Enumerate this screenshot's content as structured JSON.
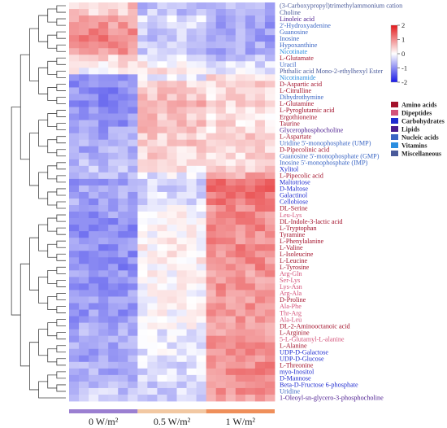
{
  "chart_data": {
    "type": "heatmap",
    "title": "",
    "groups": [
      {
        "name": "0 W/m²",
        "color": "#9b7fd1",
        "columns": 7
      },
      {
        "name": "0.5 W/m²",
        "color": "#f2c8a2",
        "columns": 7
      },
      {
        "name": "1 W/m²",
        "color": "#ef8f5a",
        "columns": 7
      }
    ],
    "scale": {
      "min": -2,
      "max": 2,
      "ticks": [
        "2",
        "1",
        "0",
        "-1",
        "-2"
      ],
      "low_color": "#1a1ae6",
      "mid_color": "#ffffff",
      "high_color": "#e31a1c"
    },
    "classes": [
      {
        "name": "Amino acids",
        "color": "#a3122b"
      },
      {
        "name": "Dipeptides",
        "color": "#d4537a"
      },
      {
        "name": "Carbohydrates",
        "color": "#1f2bd0"
      },
      {
        "name": "Lipids",
        "color": "#4b1c8f"
      },
      {
        "name": "Nucleic acids",
        "color": "#3b66c4"
      },
      {
        "name": "Vitamins",
        "color": "#2b8ee0"
      },
      {
        "name": "Miscellaneous",
        "color": "#4a5a9a"
      }
    ],
    "rows": [
      {
        "label": "(3-Carboxypropyl)trimethylammonium cation",
        "class": "Miscellaneous",
        "group_means": [
          0.5,
          -0.6,
          -0.7
        ]
      },
      {
        "label": "Choline",
        "class": "Miscellaneous",
        "group_means": [
          0.4,
          -0.5,
          -0.6
        ]
      },
      {
        "label": "Linoleic acid",
        "class": "Lipids",
        "group_means": [
          0.9,
          -0.3,
          -0.8
        ]
      },
      {
        "label": "2'-Hydroxyadenine",
        "class": "Nucleic acids",
        "group_means": [
          0.9,
          -0.4,
          -0.8
        ]
      },
      {
        "label": "Guanosine",
        "class": "Nucleic acids",
        "group_means": [
          1.0,
          -0.4,
          -0.8
        ]
      },
      {
        "label": "Inosine",
        "class": "Nucleic acids",
        "group_means": [
          1.1,
          -0.5,
          -0.8
        ]
      },
      {
        "label": "Hypoxanthine",
        "class": "Nucleic acids",
        "group_means": [
          0.9,
          -0.4,
          -0.7
        ]
      },
      {
        "label": "Nicotinate",
        "class": "Vitamins",
        "group_means": [
          0.9,
          -0.4,
          -0.7
        ]
      },
      {
        "label": "L-Glutamate",
        "class": "Amino acids",
        "group_means": [
          0.4,
          -0.3,
          -0.5
        ]
      },
      {
        "label": "Uracil",
        "class": "Nucleic acids",
        "group_means": [
          0.2,
          0.1,
          -0.3
        ]
      },
      {
        "label": "Phthalic acid Mono-2-ethylhexyl Ester",
        "class": "Miscellaneous",
        "group_means": [
          0.0,
          0.3,
          -0.2
        ]
      },
      {
        "label": "Nicotinamide",
        "class": "Vitamins",
        "group_means": [
          -1.1,
          -0.2,
          0.3
        ]
      },
      {
        "label": "D-Aspartic acid",
        "class": "Amino acids",
        "group_means": [
          -1.0,
          0.4,
          0.4
        ]
      },
      {
        "label": "L-Citrulline",
        "class": "Amino acids",
        "group_means": [
          -1.0,
          0.5,
          0.3
        ]
      },
      {
        "label": "Dihydrothymine",
        "class": "Nucleic acids",
        "group_means": [
          -1.0,
          0.5,
          0.3
        ]
      },
      {
        "label": "L-Glutamine",
        "class": "Amino acids",
        "group_means": [
          -1.1,
          0.6,
          0.3
        ]
      },
      {
        "label": "L-Pyroglutamic acid",
        "class": "Amino acids",
        "group_means": [
          -1.0,
          0.6,
          0.3
        ]
      },
      {
        "label": "Ergothioneine",
        "class": "Amino acids",
        "group_means": [
          -0.9,
          0.5,
          0.2
        ]
      },
      {
        "label": "Taurine",
        "class": "Amino acids",
        "group_means": [
          -0.9,
          0.6,
          0.3
        ]
      },
      {
        "label": "Glycerophosphocholine",
        "class": "Lipids",
        "group_means": [
          -0.8,
          0.5,
          0.3
        ]
      },
      {
        "label": "L-Aspartate",
        "class": "Amino acids",
        "group_means": [
          -0.8,
          0.4,
          0.4
        ]
      },
      {
        "label": "Uridine 5'-monophosphate (UMP)",
        "class": "Nucleic acids",
        "group_means": [
          -0.7,
          0.5,
          0.3
        ]
      },
      {
        "label": "D-Pipecolinic acid",
        "class": "Amino acids",
        "group_means": [
          -0.7,
          0.4,
          0.3
        ]
      },
      {
        "label": "Guanosine 5'-monophosphate (GMP)",
        "class": "Nucleic acids",
        "group_means": [
          -0.6,
          0.4,
          0.3
        ]
      },
      {
        "label": "Inosine 5'-monophosphate (IMP)",
        "class": "Nucleic acids",
        "group_means": [
          -0.6,
          0.3,
          0.3
        ]
      },
      {
        "label": "Xylitol",
        "class": "Carbohydrates",
        "group_means": [
          -0.5,
          0.2,
          0.4
        ]
      },
      {
        "label": "L-Pipecolic acid",
        "class": "Amino acids",
        "group_means": [
          -0.7,
          -0.2,
          0.8
        ]
      },
      {
        "label": "Maltotriose",
        "class": "Carbohydrates",
        "group_means": [
          -0.8,
          -0.4,
          1.2
        ]
      },
      {
        "label": "D-Maltose",
        "class": "Carbohydrates",
        "group_means": [
          -0.8,
          -0.4,
          1.3
        ]
      },
      {
        "label": "Galactinol",
        "class": "Carbohydrates",
        "group_means": [
          -0.8,
          -0.3,
          1.2
        ]
      },
      {
        "label": "Cellobiose",
        "class": "Carbohydrates",
        "group_means": [
          -0.8,
          -0.3,
          1.2
        ]
      },
      {
        "label": "DL-Serine",
        "class": "Amino acids",
        "group_means": [
          -0.9,
          -0.1,
          1.0
        ]
      },
      {
        "label": "Leu-Lys",
        "class": "Dipeptides",
        "group_means": [
          -0.9,
          0.0,
          1.0
        ]
      },
      {
        "label": "DL-Indole-3-lactic acid",
        "class": "Amino acids",
        "group_means": [
          -0.9,
          0.0,
          1.0
        ]
      },
      {
        "label": "L-Tryptophan",
        "class": "Amino acids",
        "group_means": [
          -1.0,
          0.0,
          1.0
        ]
      },
      {
        "label": "Tyramine",
        "class": "Amino acids",
        "group_means": [
          -1.0,
          0.0,
          1.0
        ]
      },
      {
        "label": "L-Phenylalanine",
        "class": "Amino acids",
        "group_means": [
          -1.0,
          0.1,
          1.0
        ]
      },
      {
        "label": "L-Valine",
        "class": "Amino acids",
        "group_means": [
          -1.0,
          0.1,
          1.0
        ]
      },
      {
        "label": "L-Isoleucine",
        "class": "Amino acids",
        "group_means": [
          -1.0,
          0.1,
          1.0
        ]
      },
      {
        "label": "L-Leucine",
        "class": "Amino acids",
        "group_means": [
          -1.0,
          0.1,
          1.0
        ]
      },
      {
        "label": "L-Tyrosine",
        "class": "Amino acids",
        "group_means": [
          -1.0,
          0.1,
          1.0
        ]
      },
      {
        "label": "Arg-Gln",
        "class": "Dipeptides",
        "group_means": [
          -0.9,
          0.0,
          0.9
        ]
      },
      {
        "label": "Ser-Lys",
        "class": "Dipeptides",
        "group_means": [
          -0.9,
          0.0,
          0.9
        ]
      },
      {
        "label": "Lys-Asn",
        "class": "Dipeptides",
        "group_means": [
          -0.9,
          0.0,
          0.9
        ]
      },
      {
        "label": "Arg-Ala",
        "class": "Dipeptides",
        "group_means": [
          -0.9,
          0.0,
          0.9
        ]
      },
      {
        "label": "D-Proline",
        "class": "Amino acids",
        "group_means": [
          -0.9,
          0.0,
          0.9
        ]
      },
      {
        "label": "Ala-Phe",
        "class": "Dipeptides",
        "group_means": [
          -0.9,
          0.0,
          0.9
        ]
      },
      {
        "label": "Thr-Arg",
        "class": "Dipeptides",
        "group_means": [
          -0.9,
          0.0,
          0.9
        ]
      },
      {
        "label": "Ala-Leu",
        "class": "Dipeptides",
        "group_means": [
          -0.9,
          0.0,
          0.9
        ]
      },
      {
        "label": "DL-2-Aminooctanoic acid",
        "class": "Amino acids",
        "group_means": [
          -0.8,
          0.0,
          0.8
        ]
      },
      {
        "label": "L-Arginine",
        "class": "Amino acids",
        "group_means": [
          -0.7,
          -0.2,
          0.9
        ]
      },
      {
        "label": "5-L-Glutamyl-L-alanine",
        "class": "Dipeptides",
        "group_means": [
          -0.7,
          -0.2,
          0.9
        ]
      },
      {
        "label": "L-Alanine",
        "class": "Amino acids",
        "group_means": [
          -0.7,
          -0.2,
          0.9
        ]
      },
      {
        "label": "UDP-D-Galactose",
        "class": "Carbohydrates",
        "group_means": [
          -0.8,
          -0.2,
          1.0
        ]
      },
      {
        "label": "UDP-D-Glucose",
        "class": "Carbohydrates",
        "group_means": [
          -0.8,
          -0.2,
          1.0
        ]
      },
      {
        "label": "L-Threonine",
        "class": "Amino acids",
        "group_means": [
          -0.7,
          -0.3,
          1.0
        ]
      },
      {
        "label": "myo-Inositol",
        "class": "Carbohydrates",
        "group_means": [
          -0.7,
          -0.3,
          1.0
        ]
      },
      {
        "label": "D-Mannose",
        "class": "Carbohydrates",
        "group_means": [
          -0.7,
          -0.3,
          1.0
        ]
      },
      {
        "label": "Beta-D-Fructose 6-phosphate",
        "class": "Carbohydrates",
        "group_means": [
          -0.6,
          -0.4,
          1.0
        ]
      },
      {
        "label": "Uridine",
        "class": "Nucleic acids",
        "group_means": [
          -0.5,
          -0.4,
          0.9
        ]
      },
      {
        "label": "1-Oleoyl-sn-glycero-3-phosphocholine",
        "class": "Lipids",
        "group_means": [
          -0.4,
          -0.5,
          0.9
        ]
      }
    ]
  }
}
